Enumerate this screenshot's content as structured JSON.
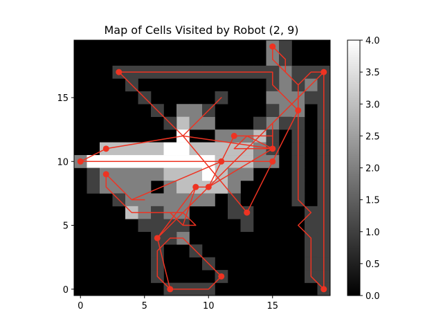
{
  "chart_data": {
    "type": "heatmap",
    "title": "Map of Cells Visited by Robot (2, 9)",
    "xlabel": "",
    "ylabel": "",
    "grid_size": [
      20,
      20
    ],
    "xlim": [
      -0.5,
      19.5
    ],
    "ylim": [
      -0.5,
      19.5
    ],
    "x_ticks": [
      0,
      5,
      10,
      15
    ],
    "y_ticks": [
      0,
      5,
      10,
      15
    ],
    "colormap": "gray",
    "colorbar": {
      "range": [
        0,
        4
      ],
      "ticks": [
        "0.0",
        "0.5",
        "1.0",
        "1.5",
        "2.0",
        "2.5",
        "3.0",
        "3.5",
        "4.0"
      ]
    },
    "grid": false,
    "path_color": "#ee3322",
    "cell_visits": [
      [
        7,
        0,
        1
      ],
      [
        8,
        0,
        1
      ],
      [
        9,
        0,
        1
      ],
      [
        10,
        0,
        1
      ],
      [
        11,
        1,
        1
      ],
      [
        10,
        2,
        1
      ],
      [
        9,
        3,
        1
      ],
      [
        8,
        4,
        1
      ],
      [
        7,
        4,
        1
      ],
      [
        6,
        3,
        1
      ],
      [
        6,
        2,
        1
      ],
      [
        6,
        1,
        1
      ],
      [
        7,
        0,
        1
      ],
      [
        6,
        4,
        1
      ],
      [
        7,
        5,
        1
      ],
      [
        8,
        6,
        1
      ],
      [
        9,
        7,
        2
      ],
      [
        10,
        8,
        3
      ],
      [
        11,
        9,
        3
      ],
      [
        12,
        10,
        3
      ],
      [
        13,
        11,
        3
      ],
      [
        14,
        12,
        3
      ],
      [
        15,
        13,
        2
      ],
      [
        16,
        14,
        2
      ],
      [
        17,
        15,
        2
      ],
      [
        18,
        16,
        2
      ],
      [
        19,
        17,
        1
      ],
      [
        19,
        16,
        1
      ],
      [
        19,
        15,
        1
      ],
      [
        19,
        14,
        1
      ],
      [
        19,
        13,
        1
      ],
      [
        19,
        12,
        1
      ],
      [
        19,
        11,
        1
      ],
      [
        19,
        10,
        1
      ],
      [
        19,
        9,
        1
      ],
      [
        19,
        8,
        1
      ],
      [
        19,
        7,
        1
      ],
      [
        19,
        6,
        1
      ],
      [
        19,
        5,
        1
      ],
      [
        19,
        4,
        1
      ],
      [
        19,
        3,
        1
      ],
      [
        19,
        2,
        1
      ],
      [
        19,
        1,
        1
      ],
      [
        19,
        0,
        1
      ],
      [
        18,
        1,
        1
      ],
      [
        18,
        2,
        1
      ],
      [
        18,
        3,
        1
      ],
      [
        18,
        4,
        1
      ],
      [
        18,
        5,
        1
      ],
      [
        18,
        6,
        1
      ],
      [
        17,
        7,
        1
      ],
      [
        17,
        8,
        1
      ],
      [
        17,
        9,
        1
      ],
      [
        17,
        10,
        1
      ],
      [
        17,
        11,
        1
      ],
      [
        17,
        12,
        1
      ],
      [
        17,
        13,
        1
      ],
      [
        17,
        14,
        2
      ],
      [
        16,
        15,
        2
      ],
      [
        16,
        16,
        2
      ],
      [
        16,
        17,
        2
      ],
      [
        15,
        18,
        2
      ],
      [
        15,
        19,
        2
      ],
      [
        16,
        19,
        1
      ],
      [
        16,
        18,
        1
      ],
      [
        17,
        17,
        1
      ],
      [
        18,
        17,
        1
      ],
      [
        18,
        15,
        1
      ],
      [
        17,
        16,
        1
      ],
      [
        15,
        16,
        1
      ],
      [
        15,
        17,
        1
      ],
      [
        15,
        15,
        2
      ],
      [
        15,
        14,
        1
      ],
      [
        16,
        13,
        1
      ],
      [
        15,
        12,
        1
      ],
      [
        14,
        11,
        2
      ],
      [
        13,
        11,
        3
      ],
      [
        12,
        11,
        2
      ],
      [
        14,
        13,
        1
      ],
      [
        13,
        12,
        2
      ],
      [
        12,
        12,
        2
      ],
      [
        11,
        12,
        2
      ],
      [
        10,
        13,
        2
      ],
      [
        9,
        14,
        2
      ],
      [
        8,
        14,
        2
      ],
      [
        8,
        13,
        3
      ],
      [
        8,
        12,
        4
      ],
      [
        7,
        13,
        1
      ],
      [
        6,
        14,
        1
      ],
      [
        5,
        15,
        1
      ],
      [
        4,
        16,
        1
      ],
      [
        3,
        17,
        1
      ],
      [
        4,
        17,
        1
      ],
      [
        5,
        17,
        1
      ],
      [
        6,
        17,
        1
      ],
      [
        7,
        17,
        1
      ],
      [
        8,
        17,
        1
      ],
      [
        9,
        17,
        1
      ],
      [
        10,
        17,
        1
      ],
      [
        11,
        17,
        1
      ],
      [
        12,
        17,
        1
      ],
      [
        13,
        17,
        1
      ],
      [
        14,
        17,
        1
      ],
      [
        15,
        17,
        1
      ],
      [
        9,
        13,
        2
      ],
      [
        10,
        14,
        1
      ],
      [
        11,
        15,
        1
      ],
      [
        2,
        11,
        3
      ],
      [
        3,
        11,
        3
      ],
      [
        4,
        11,
        3
      ],
      [
        5,
        11,
        3
      ],
      [
        6,
        11,
        3
      ],
      [
        7,
        11,
        4
      ],
      [
        8,
        11,
        4
      ],
      [
        9,
        11,
        3
      ],
      [
        10,
        11,
        3
      ],
      [
        11,
        11,
        3
      ],
      [
        12,
        11,
        3
      ],
      [
        15,
        11,
        1
      ],
      [
        0,
        10,
        2
      ],
      [
        1,
        10,
        4
      ],
      [
        2,
        10,
        4
      ],
      [
        3,
        10,
        4
      ],
      [
        4,
        10,
        4
      ],
      [
        5,
        10,
        4
      ],
      [
        6,
        10,
        4
      ],
      [
        7,
        10,
        4
      ],
      [
        8,
        10,
        4
      ],
      [
        9,
        10,
        4
      ],
      [
        10,
        10,
        4
      ],
      [
        11,
        10,
        3
      ],
      [
        12,
        10,
        3
      ],
      [
        13,
        10,
        3
      ],
      [
        14,
        10,
        2
      ],
      [
        15,
        10,
        2
      ],
      [
        1,
        9,
        1
      ],
      [
        2,
        9,
        2
      ],
      [
        3,
        9,
        2
      ],
      [
        4,
        9,
        2
      ],
      [
        5,
        9,
        2
      ],
      [
        6,
        9,
        2
      ],
      [
        7,
        9,
        3
      ],
      [
        8,
        9,
        3
      ],
      [
        9,
        9,
        3
      ],
      [
        10,
        9,
        4
      ],
      [
        11,
        9,
        3
      ],
      [
        12,
        9,
        2
      ],
      [
        13,
        9,
        2
      ],
      [
        1,
        8,
        1
      ],
      [
        2,
        8,
        2
      ],
      [
        3,
        8,
        2
      ],
      [
        4,
        8,
        2
      ],
      [
        5,
        8,
        2
      ],
      [
        7,
        8,
        2
      ],
      [
        8,
        8,
        3
      ],
      [
        9,
        8,
        3
      ],
      [
        10,
        8,
        3
      ],
      [
        11,
        8,
        3
      ],
      [
        12,
        8,
        2
      ],
      [
        3,
        7,
        1
      ],
      [
        4,
        7,
        2
      ],
      [
        5,
        7,
        2
      ],
      [
        6,
        7,
        2
      ],
      [
        7,
        7,
        2
      ],
      [
        8,
        7,
        2
      ],
      [
        9,
        7,
        2
      ],
      [
        10,
        7,
        2
      ],
      [
        12,
        7,
        1
      ],
      [
        4,
        6,
        3
      ],
      [
        5,
        6,
        2
      ],
      [
        6,
        6,
        1
      ],
      [
        7,
        6,
        2
      ],
      [
        8,
        6,
        2
      ],
      [
        12,
        6,
        1
      ],
      [
        13,
        6,
        1
      ],
      [
        5,
        5,
        1
      ],
      [
        6,
        5,
        1
      ],
      [
        7,
        5,
        1
      ],
      [
        8,
        5,
        1
      ],
      [
        13,
        5,
        1
      ],
      [
        6,
        4,
        1
      ],
      [
        7,
        4,
        1
      ],
      [
        8,
        4,
        2
      ],
      [
        9,
        3,
        1
      ],
      [
        10,
        2,
        1
      ],
      [
        11,
        1,
        1
      ]
    ],
    "path": [
      [
        7,
        0
      ],
      [
        10,
        0
      ],
      [
        11,
        1
      ],
      [
        8,
        4
      ],
      [
        7,
        4
      ],
      [
        6,
        3
      ],
      [
        6,
        1
      ],
      [
        7,
        0
      ],
      [
        6,
        4
      ],
      [
        16,
        14
      ],
      [
        18,
        16
      ],
      [
        19,
        17
      ],
      [
        19,
        0
      ],
      [
        18,
        1
      ],
      [
        18,
        4
      ],
      [
        17,
        5
      ],
      [
        18,
        6
      ],
      [
        17,
        7
      ],
      [
        17,
        16
      ],
      [
        16,
        17
      ],
      [
        16,
        18
      ],
      [
        15,
        19
      ],
      [
        15,
        18
      ],
      [
        16,
        17
      ],
      [
        17,
        16
      ],
      [
        18,
        17
      ],
      [
        19,
        17
      ],
      [
        18,
        16
      ],
      [
        16,
        14
      ],
      [
        15,
        13
      ],
      [
        15,
        11
      ],
      [
        12,
        11
      ],
      [
        13,
        12
      ],
      [
        15,
        11
      ],
      [
        8,
        12
      ],
      [
        9,
        13
      ],
      [
        11,
        15
      ],
      [
        8,
        12
      ],
      [
        6,
        14
      ],
      [
        4,
        16
      ],
      [
        3,
        17
      ],
      [
        15,
        17
      ],
      [
        15,
        16
      ],
      [
        16,
        15
      ],
      [
        17,
        14
      ],
      [
        13,
        6
      ],
      [
        8,
        12
      ],
      [
        2,
        11
      ],
      [
        0,
        10
      ],
      [
        15,
        10
      ],
      [
        11,
        10
      ],
      [
        4,
        7
      ],
      [
        5,
        7
      ],
      [
        4,
        7
      ],
      [
        2,
        9
      ],
      [
        2,
        8
      ],
      [
        3,
        7
      ],
      [
        4,
        6
      ],
      [
        6,
        6
      ],
      [
        7,
        6
      ],
      [
        8,
        5
      ],
      [
        9,
        5
      ],
      [
        8,
        6
      ],
      [
        7,
        6
      ],
      [
        8,
        5
      ],
      [
        9,
        8
      ],
      [
        10,
        8
      ],
      [
        11,
        10
      ],
      [
        12,
        12
      ],
      [
        15,
        12
      ],
      [
        15,
        11
      ],
      [
        10,
        8
      ],
      [
        9,
        8
      ],
      [
        6,
        4
      ]
    ],
    "markers": [
      [
        7,
        0
      ],
      [
        11,
        1
      ],
      [
        6,
        4
      ],
      [
        13,
        6
      ],
      [
        9,
        8
      ],
      [
        10,
        8
      ],
      [
        11,
        10
      ],
      [
        12,
        12
      ],
      [
        15,
        11
      ],
      [
        15,
        10
      ],
      [
        0,
        10
      ],
      [
        2,
        11
      ],
      [
        2,
        9
      ],
      [
        3,
        17
      ],
      [
        17,
        14
      ],
      [
        19,
        17
      ],
      [
        15,
        19
      ],
      [
        19,
        0
      ]
    ]
  }
}
